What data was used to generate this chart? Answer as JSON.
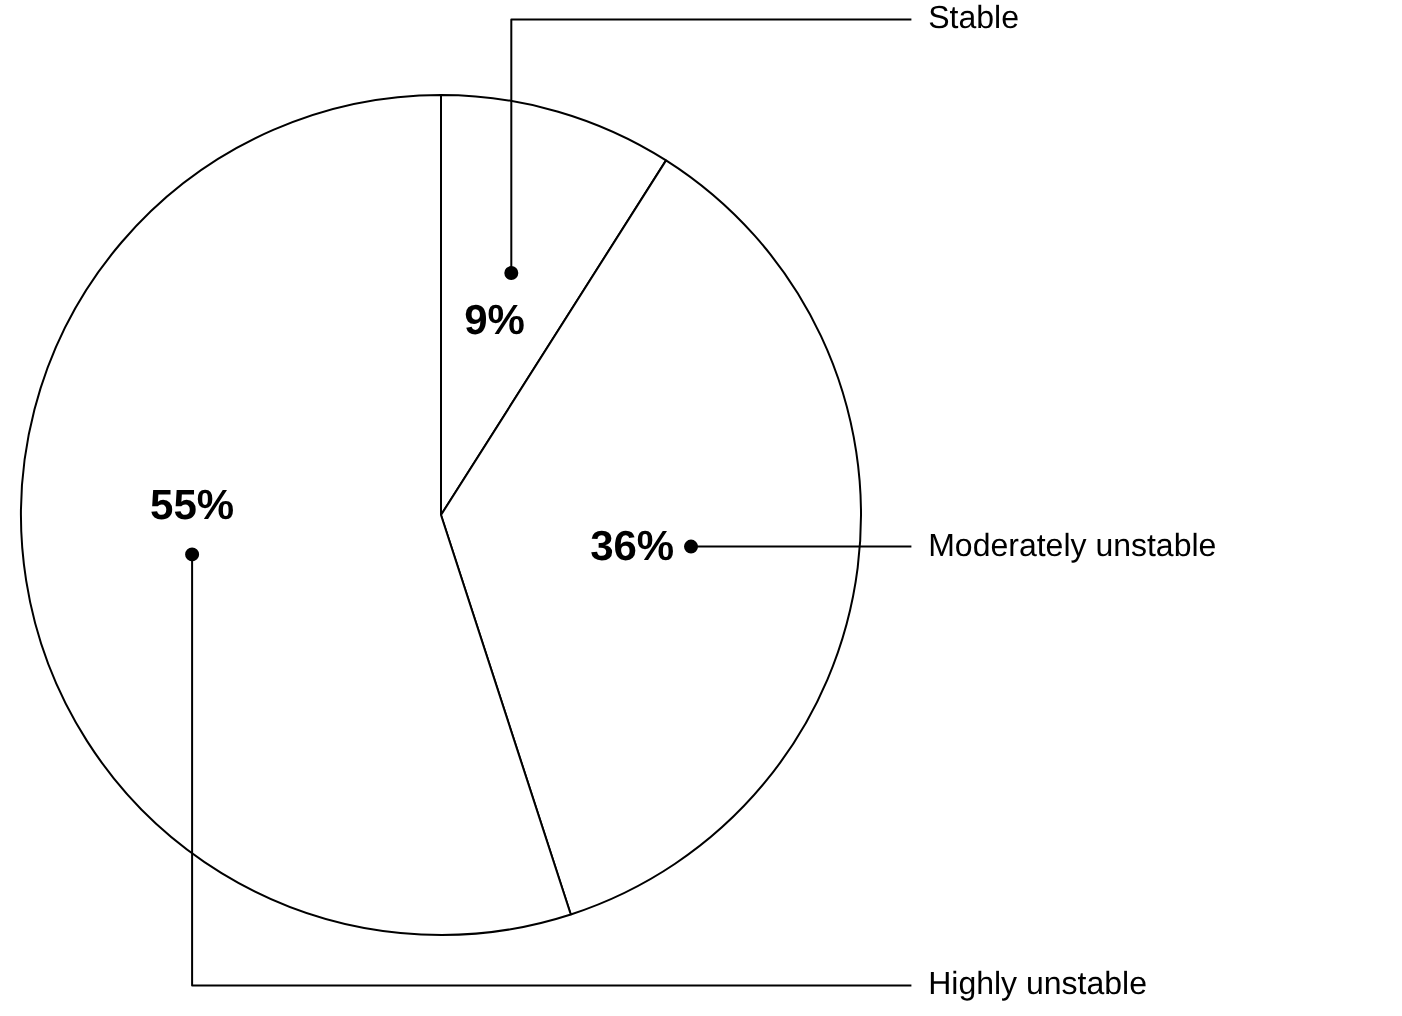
{
  "chart_data": {
    "type": "pie",
    "categories": [
      "Stable",
      "Moderately unstable",
      "Highly unstable"
    ],
    "values": [
      9,
      36,
      55
    ],
    "colors": [
      "#ffffff",
      "#ffffff",
      "#ffffff"
    ],
    "value_labels": [
      "9%",
      "36%",
      "55%"
    ]
  }
}
